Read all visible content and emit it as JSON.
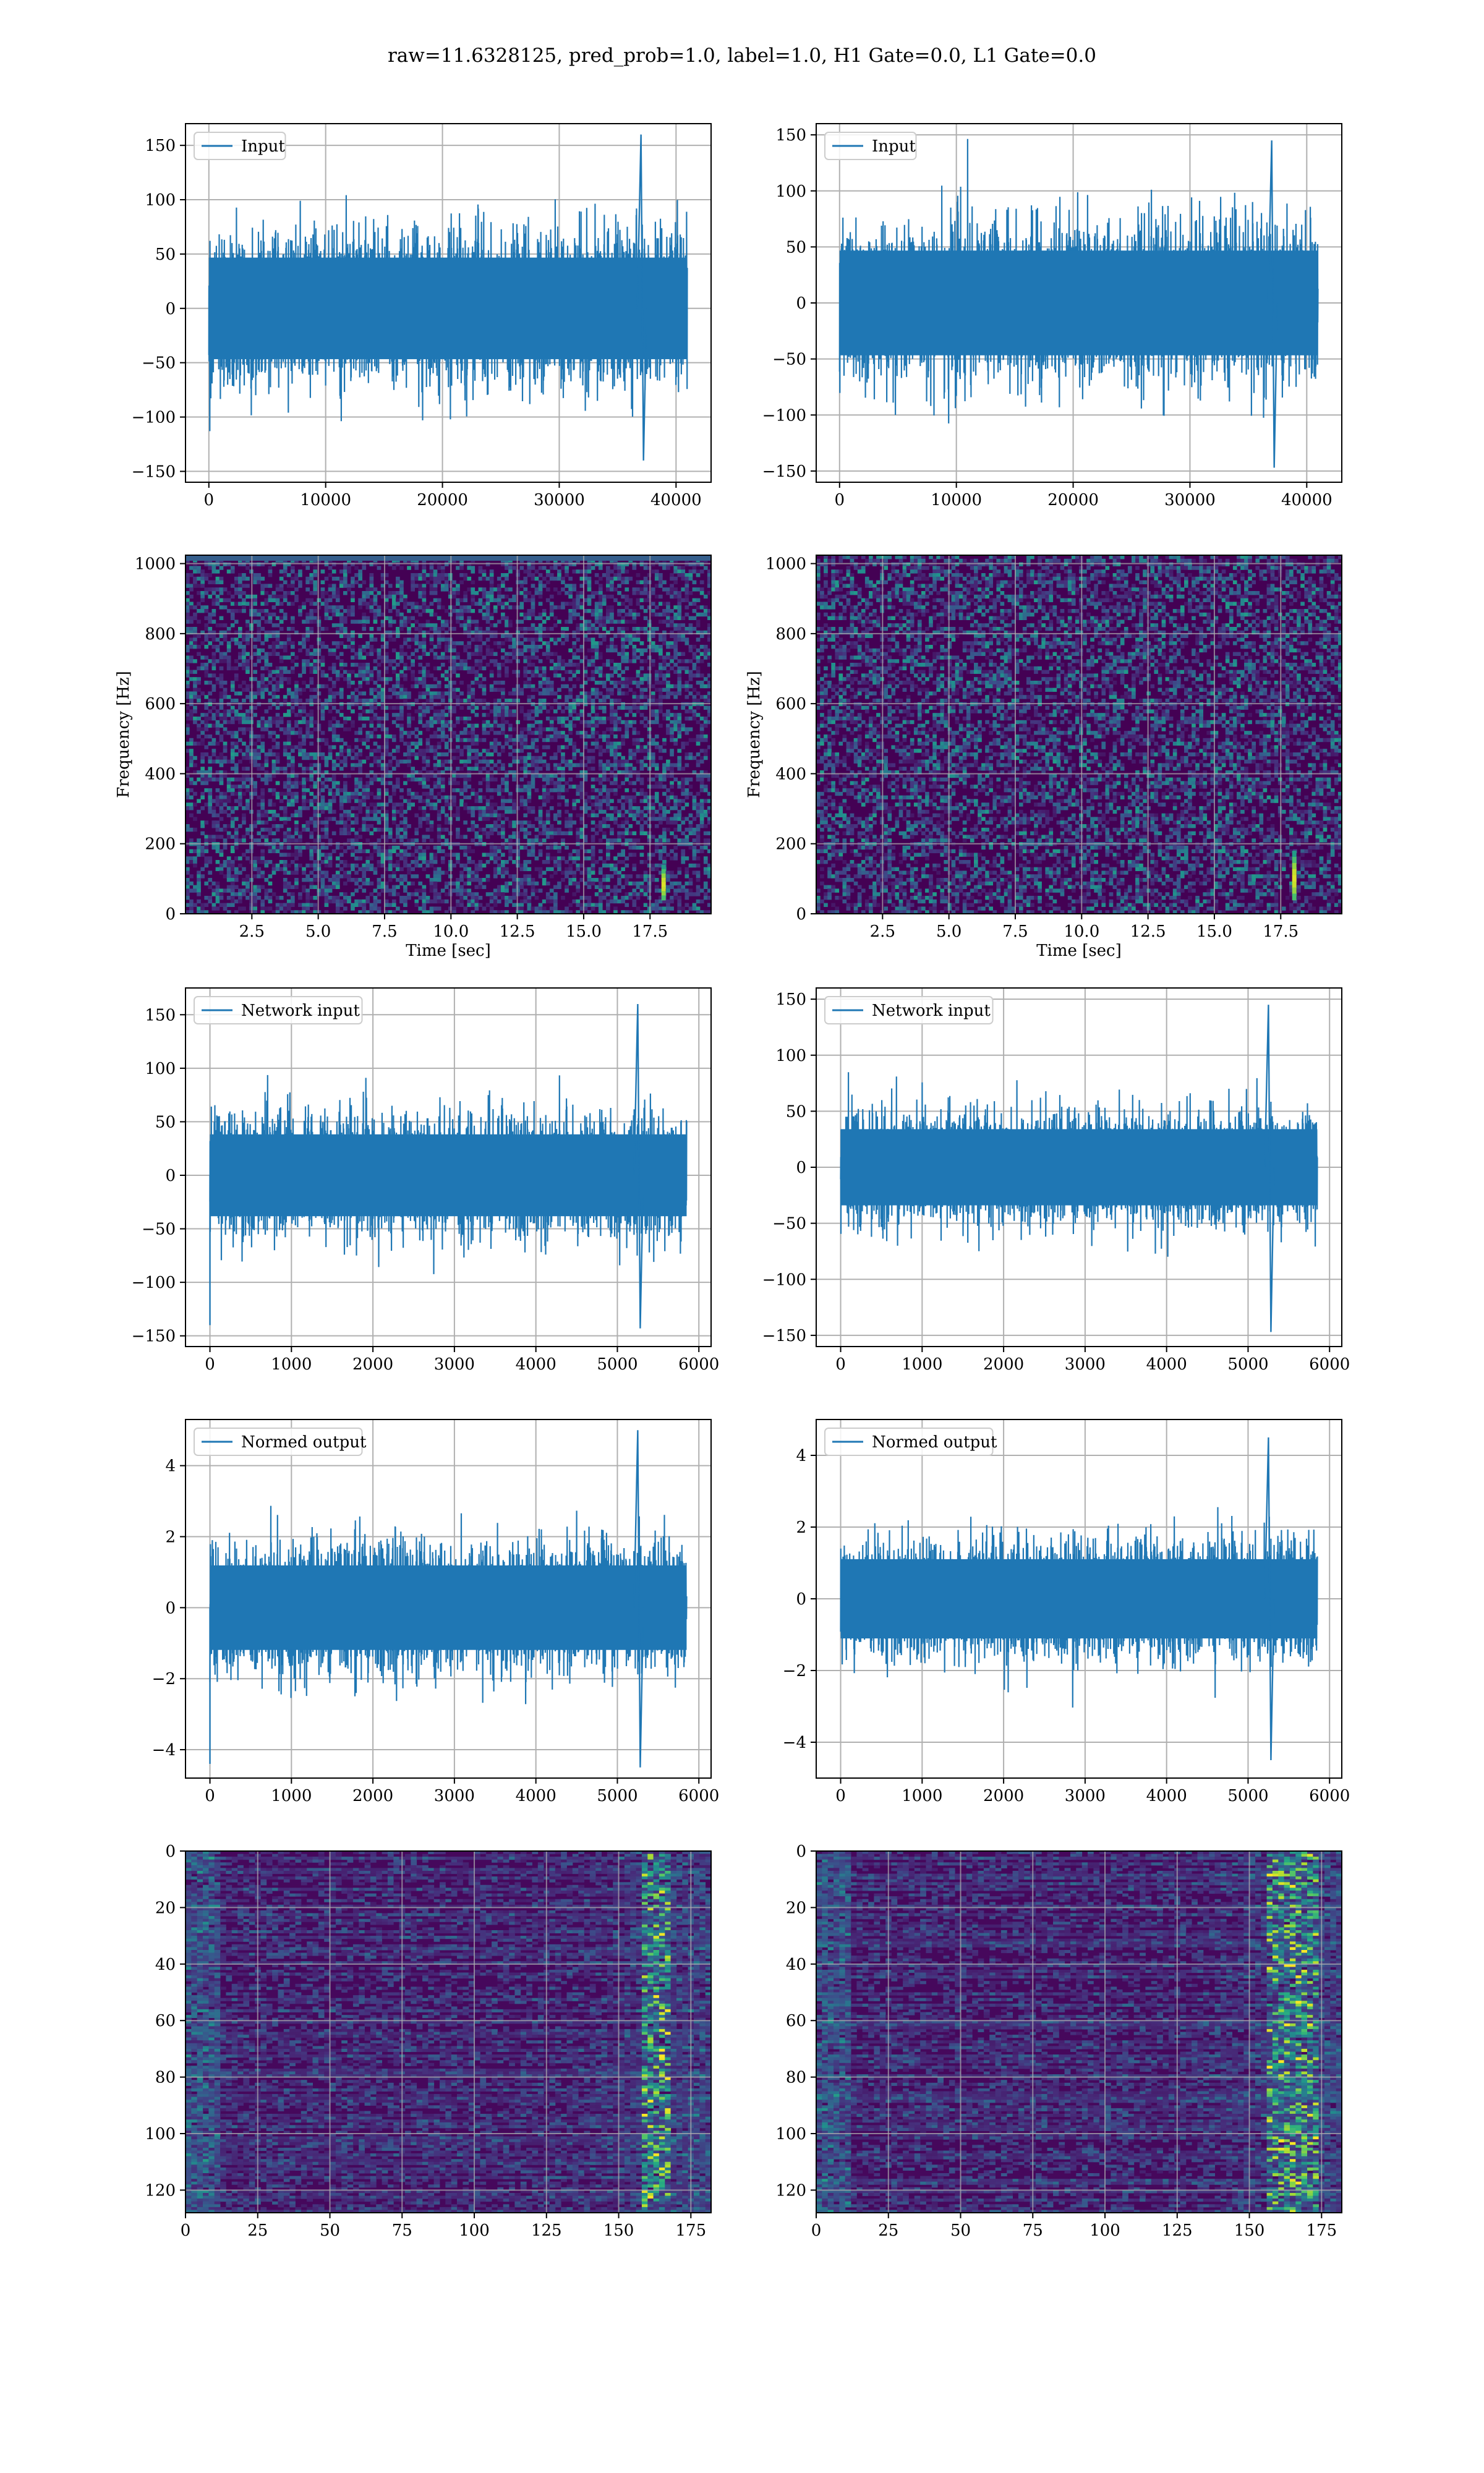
{
  "figure": {
    "title": "raw=11.6328125, pred_prob=1.0, label=1.0, H1 Gate=0.0, L1 Gate=0.0"
  },
  "colors": {
    "line": "#1f77b4",
    "grid": "#b0b0b0",
    "axes": "#000000",
    "viridis": [
      "#440154",
      "#472c7a",
      "#3b518b",
      "#2c718e",
      "#21908d",
      "#27ad81",
      "#5cc863",
      "#aadc32",
      "#fde725"
    ]
  },
  "chart_data": [
    {
      "id": "h1-input",
      "type": "line",
      "column": "left",
      "row": 0,
      "series": [
        {
          "name": "Input",
          "amplitude": 55,
          "peak": 160,
          "trough": -140,
          "spike_x": 37000
        }
      ],
      "legend": "top-left",
      "x_range": [
        0,
        40960
      ],
      "xlim": [
        -2000,
        43000
      ],
      "ylim": [
        -160,
        170
      ],
      "xticks": [
        0,
        10000,
        20000,
        30000,
        40000
      ],
      "xtick_labels": [
        "0",
        "10000",
        "20000",
        "30000",
        "40000"
      ],
      "yticks": [
        -150,
        -100,
        -50,
        0,
        50,
        100,
        150
      ],
      "ytick_labels": [
        "−150",
        "−100",
        "−50",
        "0",
        "50",
        "100",
        "150"
      ],
      "xlabel": "",
      "ylabel": "",
      "grid": true
    },
    {
      "id": "l1-input",
      "type": "line",
      "column": "right",
      "row": 0,
      "series": [
        {
          "name": "Input",
          "amplitude": 55,
          "peak": 145,
          "trough": -147,
          "spike_x": 37000
        }
      ],
      "legend": "top-left",
      "x_range": [
        0,
        40960
      ],
      "xlim": [
        -2000,
        43000
      ],
      "ylim": [
        -160,
        160
      ],
      "xticks": [
        0,
        10000,
        20000,
        30000,
        40000
      ],
      "xtick_labels": [
        "0",
        "10000",
        "20000",
        "30000",
        "40000"
      ],
      "yticks": [
        -150,
        -100,
        -50,
        0,
        50,
        100,
        150
      ],
      "ytick_labels": [
        "−150",
        "−100",
        "−50",
        "0",
        "50",
        "100",
        "150"
      ],
      "xlabel": "",
      "ylabel": "",
      "grid": true
    },
    {
      "id": "h1-spectrogram",
      "type": "heatmap",
      "column": "left",
      "row": 1,
      "xlim": [
        0,
        19.8
      ],
      "ylim": [
        0,
        1024
      ],
      "xticks": [
        2.5,
        5.0,
        7.5,
        10.0,
        12.5,
        15.0,
        17.5
      ],
      "xtick_labels": [
        "2.5",
        "5.0",
        "7.5",
        "10.0",
        "12.5",
        "15.0",
        "17.5"
      ],
      "yticks": [
        0,
        200,
        400,
        600,
        800,
        1000
      ],
      "ytick_labels": [
        "0",
        "200",
        "400",
        "600",
        "800",
        "1000"
      ],
      "xlabel": "Time [sec]",
      "ylabel": "Frequency [Hz]",
      "grid": true,
      "chirp": {
        "time": 18.0,
        "freq_range": [
          40,
          140
        ]
      },
      "top_line": true
    },
    {
      "id": "l1-spectrogram",
      "type": "heatmap",
      "column": "right",
      "row": 1,
      "xlim": [
        0,
        19.8
      ],
      "ylim": [
        0,
        1024
      ],
      "xticks": [
        2.5,
        5.0,
        7.5,
        10.0,
        12.5,
        15.0,
        17.5
      ],
      "xtick_labels": [
        "2.5",
        "5.0",
        "7.5",
        "10.0",
        "12.5",
        "15.0",
        "17.5"
      ],
      "yticks": [
        0,
        200,
        400,
        600,
        800,
        1000
      ],
      "ytick_labels": [
        "0",
        "200",
        "400",
        "600",
        "800",
        "1000"
      ],
      "xlabel": "Time [sec]",
      "ylabel": "Frequency [Hz]",
      "grid": true,
      "chirp": {
        "time": 18.0,
        "freq_range": [
          40,
          180
        ]
      },
      "top_line": false
    },
    {
      "id": "h1-network-input",
      "type": "line",
      "column": "left",
      "row": 2,
      "series": [
        {
          "name": "Network input",
          "amplitude": 45,
          "peak": 160,
          "trough": -143,
          "spike_x": 5250,
          "start_spike": -140
        }
      ],
      "legend": "top-left",
      "x_range": [
        0,
        5850
      ],
      "xlim": [
        -300,
        6150
      ],
      "ylim": [
        -160,
        175
      ],
      "xticks": [
        0,
        1000,
        2000,
        3000,
        4000,
        5000,
        6000
      ],
      "xtick_labels": [
        "0",
        "1000",
        "2000",
        "3000",
        "4000",
        "5000",
        "6000"
      ],
      "yticks": [
        -150,
        -100,
        -50,
        0,
        50,
        100,
        150
      ],
      "ytick_labels": [
        "−150",
        "−100",
        "−50",
        "0",
        "50",
        "100",
        "150"
      ],
      "xlabel": "",
      "ylabel": "",
      "grid": true
    },
    {
      "id": "l1-network-input",
      "type": "line",
      "column": "right",
      "row": 2,
      "series": [
        {
          "name": "Network input",
          "amplitude": 40,
          "peak": 145,
          "trough": -147,
          "spike_x": 5250
        }
      ],
      "legend": "top-left",
      "x_range": [
        0,
        5850
      ],
      "xlim": [
        -300,
        6150
      ],
      "ylim": [
        -160,
        160
      ],
      "xticks": [
        0,
        1000,
        2000,
        3000,
        4000,
        5000,
        6000
      ],
      "xtick_labels": [
        "0",
        "1000",
        "2000",
        "3000",
        "4000",
        "5000",
        "6000"
      ],
      "yticks": [
        -150,
        -100,
        -50,
        0,
        50,
        100,
        150
      ],
      "ytick_labels": [
        "−150",
        "−100",
        "−50",
        "0",
        "50",
        "100",
        "150"
      ],
      "xlabel": "",
      "ylabel": "",
      "grid": true
    },
    {
      "id": "h1-normed-output",
      "type": "line",
      "column": "left",
      "row": 3,
      "series": [
        {
          "name": "Normed output",
          "amplitude": 1.4,
          "peak": 5.0,
          "trough": -4.5,
          "spike_x": 5250,
          "start_spike": -4.4
        }
      ],
      "legend": "top-left",
      "x_range": [
        0,
        5850
      ],
      "xlim": [
        -300,
        6150
      ],
      "ylim": [
        -4.8,
        5.3
      ],
      "xticks": [
        0,
        1000,
        2000,
        3000,
        4000,
        5000,
        6000
      ],
      "xtick_labels": [
        "0",
        "1000",
        "2000",
        "3000",
        "4000",
        "5000",
        "6000"
      ],
      "yticks": [
        -4,
        -2,
        0,
        2,
        4
      ],
      "ytick_labels": [
        "−4",
        "−2",
        "0",
        "2",
        "4"
      ],
      "xlabel": "",
      "ylabel": "",
      "grid": true
    },
    {
      "id": "l1-normed-output",
      "type": "line",
      "column": "right",
      "row": 3,
      "series": [
        {
          "name": "Normed output",
          "amplitude": 1.3,
          "peak": 4.5,
          "trough": -4.5,
          "spike_x": 5250
        }
      ],
      "legend": "top-left",
      "x_range": [
        0,
        5850
      ],
      "xlim": [
        -300,
        6150
      ],
      "ylim": [
        -5.0,
        5.0
      ],
      "xticks": [
        0,
        1000,
        2000,
        3000,
        4000,
        5000,
        6000
      ],
      "xtick_labels": [
        "0",
        "1000",
        "2000",
        "3000",
        "4000",
        "5000",
        "6000"
      ],
      "yticks": [
        -4,
        -2,
        0,
        2,
        4
      ],
      "ytick_labels": [
        "−4",
        "−2",
        "0",
        "2",
        "4"
      ],
      "xlabel": "",
      "ylabel": "",
      "grid": true
    },
    {
      "id": "h1-feature-map",
      "type": "heatmap",
      "column": "left",
      "row": 4,
      "xlim": [
        0,
        182
      ],
      "ylim": [
        128,
        0
      ],
      "xticks": [
        0,
        25,
        50,
        75,
        100,
        125,
        150,
        175
      ],
      "xtick_labels": [
        "0",
        "25",
        "50",
        "75",
        "100",
        "125",
        "150",
        "175"
      ],
      "yticks": [
        0,
        20,
        40,
        60,
        80,
        100,
        120
      ],
      "ytick_labels": [
        "0",
        "20",
        "40",
        "60",
        "80",
        "100",
        "120"
      ],
      "xlabel": "",
      "ylabel": "",
      "grid": true,
      "hot_columns": [
        157,
        167
      ]
    },
    {
      "id": "l1-feature-map",
      "type": "heatmap",
      "column": "right",
      "row": 4,
      "xlim": [
        0,
        182
      ],
      "ylim": [
        128,
        0
      ],
      "xticks": [
        0,
        25,
        50,
        75,
        100,
        125,
        150,
        175
      ],
      "xtick_labels": [
        "0",
        "25",
        "50",
        "75",
        "100",
        "125",
        "150",
        "175"
      ],
      "yticks": [
        0,
        20,
        40,
        60,
        80,
        100,
        120
      ],
      "ytick_labels": [
        "0",
        "20",
        "40",
        "60",
        "80",
        "100",
        "120"
      ],
      "xlabel": "",
      "ylabel": "",
      "grid": true,
      "hot_columns": [
        155,
        172
      ]
    }
  ]
}
